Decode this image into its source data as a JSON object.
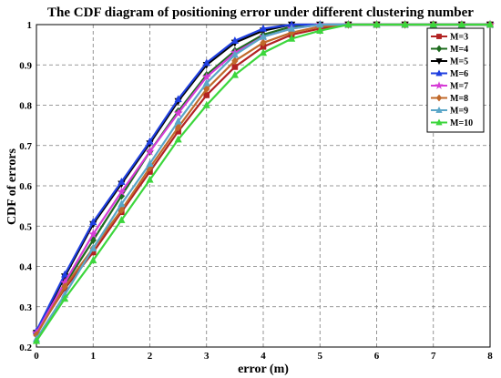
{
  "chart_data": {
    "type": "line",
    "title": "The CDF diagram of positioning error under different clustering number",
    "xlabel": "error (m)",
    "ylabel": "CDF of errors",
    "xlim": [
      0,
      8
    ],
    "ylim": [
      0.2,
      1
    ],
    "xticks": [
      "0",
      "1",
      "2",
      "3",
      "4",
      "5",
      "6",
      "7",
      "8"
    ],
    "yticks": [
      "0.2",
      "0.3",
      "0.4",
      "0.5",
      "0.6",
      "0.7",
      "0.8",
      "0.9",
      "1"
    ],
    "grid": true,
    "legend_position": "top-right",
    "x": [
      0,
      0.5,
      1,
      1.5,
      2,
      2.5,
      3,
      3.5,
      4,
      4.5,
      5,
      5.5,
      6,
      6.5,
      7,
      7.5,
      8
    ],
    "series": [
      {
        "name": "M=3",
        "color": "#b22222",
        "marker": "square",
        "values": [
          0.235,
          0.345,
          0.435,
          0.535,
          0.635,
          0.735,
          0.825,
          0.895,
          0.945,
          0.975,
          0.99,
          1,
          1,
          1,
          1,
          1,
          1
        ]
      },
      {
        "name": "M=4",
        "color": "#1e6b1e",
        "marker": "diamond",
        "values": [
          0.235,
          0.355,
          0.465,
          0.575,
          0.685,
          0.785,
          0.875,
          0.935,
          0.975,
          0.995,
          1,
          1,
          1,
          1,
          1,
          1,
          1
        ]
      },
      {
        "name": "M=5",
        "color": "#000000",
        "marker": "triangle-down",
        "values": [
          0.235,
          0.375,
          0.505,
          0.605,
          0.705,
          0.81,
          0.9,
          0.955,
          0.985,
          1,
          1,
          1,
          1,
          1,
          1,
          1,
          1
        ]
      },
      {
        "name": "M=6",
        "color": "#1f3fe0",
        "marker": "triangle-up",
        "values": [
          0.24,
          0.38,
          0.51,
          0.61,
          0.71,
          0.815,
          0.905,
          0.96,
          0.99,
          1,
          1,
          1,
          1,
          1,
          1,
          1,
          1
        ]
      },
      {
        "name": "M=7",
        "color": "#d63cd6",
        "marker": "star",
        "values": [
          0.235,
          0.36,
          0.48,
          0.585,
          0.685,
          0.78,
          0.87,
          0.93,
          0.97,
          0.99,
          1,
          1,
          1,
          1,
          1,
          1,
          1
        ]
      },
      {
        "name": "M=8",
        "color": "#c0692a",
        "marker": "diamond",
        "values": [
          0.23,
          0.35,
          0.445,
          0.54,
          0.645,
          0.745,
          0.84,
          0.91,
          0.955,
          0.98,
          0.995,
          1,
          1,
          1,
          1,
          1,
          1
        ]
      },
      {
        "name": "M=9",
        "color": "#5aa6c8",
        "marker": "triangle-up",
        "values": [
          0.22,
          0.33,
          0.445,
          0.555,
          0.655,
          0.76,
          0.855,
          0.925,
          0.97,
          0.99,
          1,
          1,
          1,
          1,
          1,
          1,
          1
        ]
      },
      {
        "name": "M=10",
        "color": "#3cd63c",
        "marker": "triangle-up",
        "values": [
          0.215,
          0.32,
          0.415,
          0.515,
          0.615,
          0.715,
          0.8,
          0.875,
          0.93,
          0.965,
          0.985,
          1,
          1,
          1,
          1,
          1,
          1
        ]
      }
    ]
  }
}
